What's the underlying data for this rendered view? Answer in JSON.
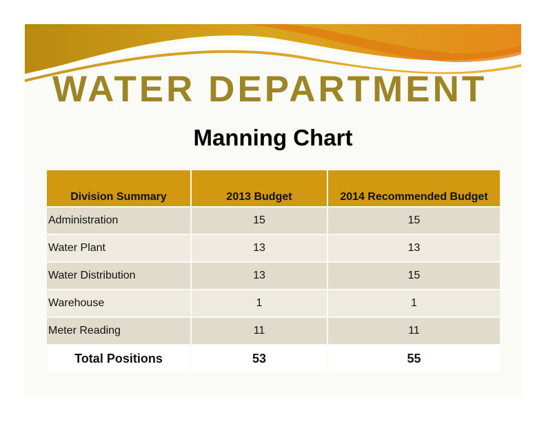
{
  "header": {
    "title": "WATER DEPARTMENT",
    "subtitle": "Manning Chart"
  },
  "colors": {
    "title": "#9d8526",
    "table_header": "#d19810",
    "row_dark": "#e1dbcb",
    "row_light": "#eeeadf",
    "swoosh_gold": "#c98e12",
    "swoosh_orange": "#e58a18"
  },
  "table": {
    "columns": [
      "Division Summary",
      "2013 Budget",
      "2014 Recommended Budget"
    ],
    "rows": [
      {
        "division": "Administration",
        "budget_2013": "15",
        "budget_2014": "15"
      },
      {
        "division": "Water Plant",
        "budget_2013": "13",
        "budget_2014": "13"
      },
      {
        "division": "Water Distribution",
        "budget_2013": "13",
        "budget_2014": "15"
      },
      {
        "division": "Warehouse",
        "budget_2013": "1",
        "budget_2014": "1"
      },
      {
        "division": "Meter Reading",
        "budget_2013": "11",
        "budget_2014": "11"
      }
    ],
    "total": {
      "label": "Total Positions",
      "budget_2013": "53",
      "budget_2014": "55"
    }
  }
}
